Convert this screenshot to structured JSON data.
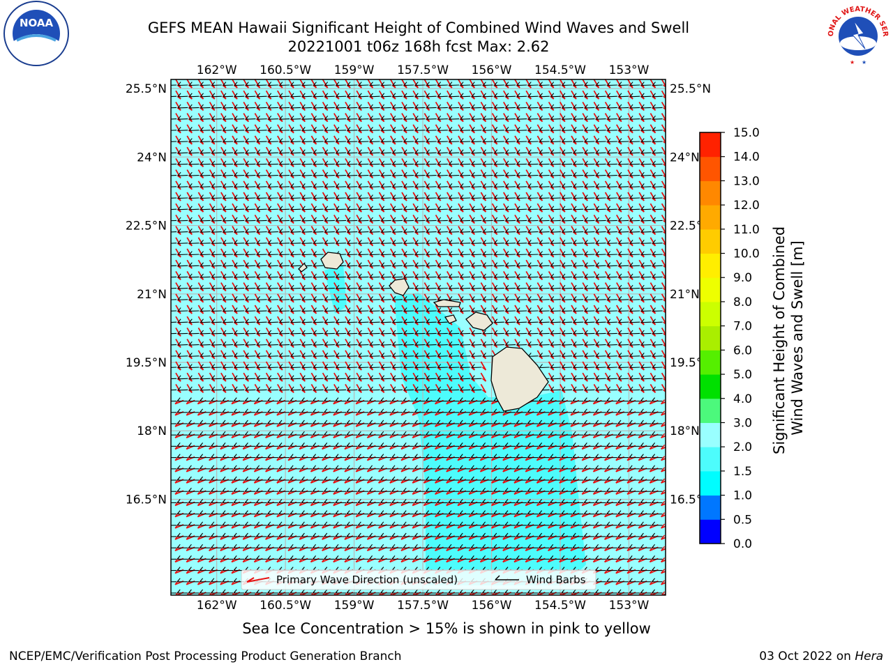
{
  "header": {
    "title_line1": "GEFS MEAN Hawaii Significant Height of Combined Wind Waves and Swell",
    "title_line2": "20221001 t06z 168h fcst   Max: 2.62"
  },
  "logos": {
    "left": "NOAA",
    "right": "NATIONAL WEATHER SERVICE"
  },
  "map": {
    "lon_ticks": [
      "162°W",
      "160.5°W",
      "159°W",
      "157.5°W",
      "156°W",
      "154.5°W",
      "153°W"
    ],
    "lat_ticks": [
      "25.5°N",
      "24°N",
      "22.5°N",
      "21°N",
      "19.5°N",
      "18°N",
      "16.5°N"
    ],
    "lon_values": [
      -162,
      -160.5,
      -159,
      -157.5,
      -156,
      -154.5,
      -153
    ],
    "lat_values": [
      25.5,
      24,
      22.5,
      21,
      19.5,
      18,
      16.5
    ],
    "extent": {
      "lon_min": -163,
      "lon_max": -152.2,
      "lat_min": 14.4,
      "lat_max": 25.7
    },
    "sea_color": "#99ffff",
    "swell_color": "#4dfcfc",
    "land_color": "#ede9d8",
    "wave_arrow_color": "#e81010",
    "barb_color": "#000000"
  },
  "legend": {
    "wave_label": "Primary Wave Direction (unscaled)",
    "barb_label": "Wind Barbs"
  },
  "colorbar": {
    "title_line1": "Significant Height of Combined",
    "title_line2": "Wind Waves and Swell [m]",
    "levels": [
      "0.0",
      "0.5",
      "1.0",
      "1.5",
      "2.0",
      "3.0",
      "4.0",
      "5.0",
      "6.0",
      "7.0",
      "8.0",
      "9.0",
      "10.0",
      "11.0",
      "12.0",
      "13.0",
      "14.0",
      "15.0"
    ],
    "colors": [
      "#0000ff",
      "#0077ff",
      "#00fdff",
      "#4dfcfc",
      "#99ffff",
      "#4cf97c",
      "#00e000",
      "#55ef00",
      "#aaee00",
      "#ccff00",
      "#eeff00",
      "#ffee00",
      "#ffcc00",
      "#ffaa00",
      "#ff8800",
      "#ff5500",
      "#ff2200"
    ]
  },
  "notes": {
    "sea_ice": "Sea Ice Concentration > 15% is shown in pink to yellow"
  },
  "footer": {
    "left": "NCEP/EMC/Verification Post Processing Product Generation Branch",
    "right_prefix": "03 Oct 2022 on ",
    "right_machine": "Hera"
  }
}
